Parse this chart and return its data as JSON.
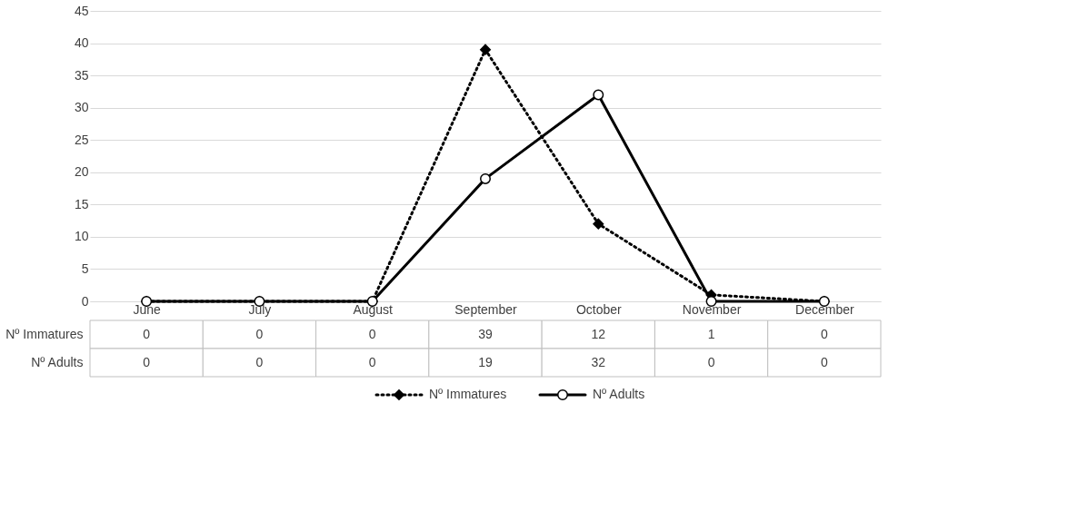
{
  "chart_data": {
    "type": "line",
    "categories": [
      "June",
      "July",
      "August",
      "September",
      "October",
      "November",
      "December"
    ],
    "series": [
      {
        "name": "Nº Immatures",
        "color": "#000000",
        "values": [
          0,
          0,
          0,
          39,
          12,
          1,
          0
        ],
        "line_style": "dotted",
        "marker": "diamond"
      },
      {
        "name": "Nº Adults",
        "color": "#000000",
        "values": [
          0,
          0,
          0,
          19,
          32,
          0,
          0
        ],
        "line_style": "solid",
        "marker": "circle"
      }
    ],
    "ylim": [
      0,
      45
    ],
    "yticks": [
      0,
      5,
      10,
      15,
      20,
      25,
      30,
      35,
      40,
      45
    ],
    "grid": "y",
    "legend": "bottom",
    "data_labels": true
  }
}
